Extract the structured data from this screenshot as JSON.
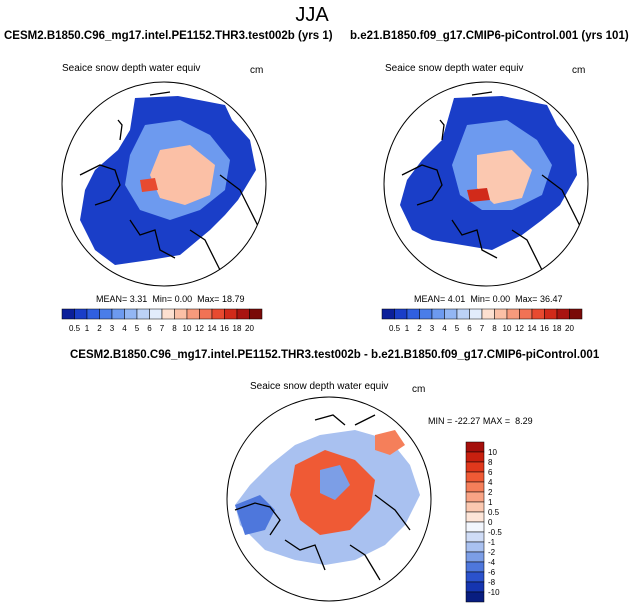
{
  "page": {
    "title": "JJA"
  },
  "chart_data": [
    {
      "type": "heatmap",
      "projection": "north polar stereographic",
      "title": "CESM2.B1850.C96_mg17.intel.PE1152.THR3.test002b (yrs 1)",
      "variable": "Seaice snow depth water equiv",
      "units": "cm",
      "stats": {
        "mean_label": "MEAN=",
        "mean": "3.31",
        "min_label": "Min=",
        "min": "0.00",
        "max_label": "Max=",
        "max": "18.79"
      },
      "colorbar_orientation": "horizontal",
      "levels": [
        "0.5",
        "1",
        "2",
        "3",
        "4",
        "5",
        "6",
        "7",
        "8",
        "10",
        "12",
        "14",
        "16",
        "18",
        "20"
      ],
      "colors": [
        "#0b1f9a",
        "#1a3ec8",
        "#2f5fe0",
        "#4a7de8",
        "#6d9aef",
        "#93b6f3",
        "#bcd2f7",
        "#e2ecfb",
        "#fde0d0",
        "#fbc0a6",
        "#f79a7c",
        "#f27255",
        "#e84a30",
        "#d12a1a",
        "#a81410",
        "#7a0a08"
      ]
    },
    {
      "type": "heatmap",
      "projection": "north polar stereographic",
      "title": "b.e21.B1850.f09_g17.CMIP6-piControl.001 (yrs 101)",
      "variable": "Seaice snow depth water equiv",
      "units": "cm",
      "stats": {
        "mean_label": "MEAN=",
        "mean": "4.01",
        "min_label": "Min=",
        "min": "0.00",
        "max_label": "Max=",
        "max": "36.47"
      },
      "colorbar_orientation": "horizontal",
      "levels": [
        "0.5",
        "1",
        "2",
        "3",
        "4",
        "5",
        "6",
        "7",
        "8",
        "10",
        "12",
        "14",
        "16",
        "18",
        "20"
      ],
      "colors": [
        "#0b1f9a",
        "#1a3ec8",
        "#2f5fe0",
        "#4a7de8",
        "#6d9aef",
        "#93b6f3",
        "#bcd2f7",
        "#e2ecfb",
        "#fde0d0",
        "#fbc0a6",
        "#f79a7c",
        "#f27255",
        "#e84a30",
        "#d12a1a",
        "#a81410",
        "#7a0a08"
      ]
    },
    {
      "type": "heatmap",
      "projection": "north polar stereographic",
      "title": "CESM2.B1850.C96_mg17.intel.PE1152.THR3.test002b - b.e21.B1850.f09_g17.CMIP6-piControl.001",
      "variable": "Seaice snow depth water equiv",
      "units": "cm",
      "stats": {
        "min_label": "MIN =",
        "min": "-22.27",
        "max_label": "MAX =",
        "max": "8.29"
      },
      "colorbar_orientation": "vertical",
      "levels": [
        "10",
        "8",
        "6",
        "4",
        "2",
        "1",
        "0.5",
        "0",
        "-0.5",
        "-1",
        "-2",
        "-4",
        "-6",
        "-8",
        "-10"
      ],
      "colors": [
        "#a50f0b",
        "#c8200f",
        "#e0381c",
        "#ef5a35",
        "#f57f5a",
        "#f9a485",
        "#fbc8b0",
        "#fde5d8",
        "#f2f6fd",
        "#cfdcf6",
        "#a9c1f0",
        "#7c9ee6",
        "#4e77dc",
        "#2b52cc",
        "#1535b0",
        "#081d80"
      ]
    }
  ]
}
